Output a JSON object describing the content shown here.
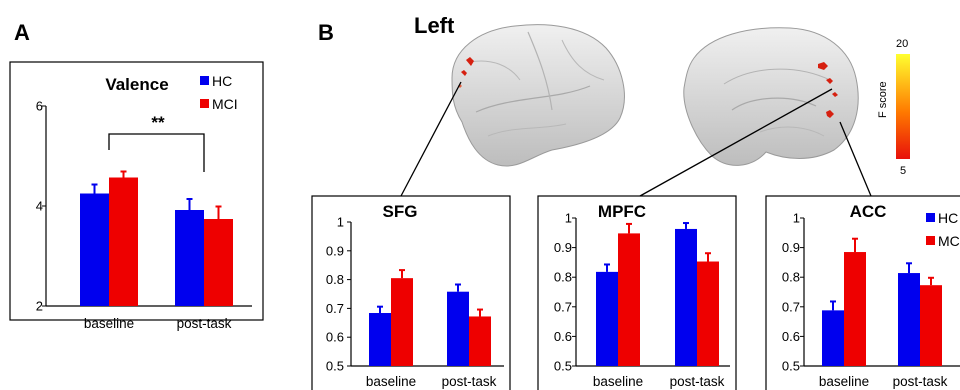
{
  "figure": {
    "panel_a_label": "A",
    "panel_b_label": "B",
    "hemisphere_label": "Left",
    "significance_label": "**",
    "colorbar": {
      "title": "F score",
      "max_label": "20",
      "min_label": "5",
      "min": 5,
      "max": 20
    }
  },
  "colors": {
    "HC": "#0000ee",
    "MCI": "#ee0000",
    "error_bar_HC": "#0000ee",
    "error_bar_MCI": "#ee0000"
  },
  "chart_data": [
    {
      "id": "valence",
      "type": "bar",
      "title": "Valence",
      "categories": [
        "baseline",
        "post-task"
      ],
      "ylim": [
        2,
        6
      ],
      "yticks": [
        "2",
        "4",
        "6"
      ],
      "legend": [
        "HC",
        "MCI"
      ],
      "legend_position": "top-right",
      "series": [
        {
          "name": "HC",
          "values": [
            4.25,
            3.92
          ],
          "errors": [
            0.18,
            0.22
          ]
        },
        {
          "name": "MCI",
          "values": [
            4.57,
            3.74
          ],
          "errors": [
            0.12,
            0.25
          ]
        }
      ]
    },
    {
      "id": "sfg",
      "type": "bar",
      "title": "SFG",
      "categories": [
        "baseline",
        "post-task"
      ],
      "ylim": [
        0.5,
        1.0
      ],
      "yticks": [
        "0.5",
        "0.6",
        "0.7",
        "0.8",
        "0.9",
        "1"
      ],
      "series": [
        {
          "name": "HC",
          "values": [
            0.684,
            0.758
          ],
          "errors": [
            0.022,
            0.025
          ]
        },
        {
          "name": "MCI",
          "values": [
            0.805,
            0.672
          ],
          "errors": [
            0.028,
            0.024
          ]
        }
      ]
    },
    {
      "id": "mpfc",
      "type": "bar",
      "title": "MPFC",
      "categories": [
        "baseline",
        "post-task"
      ],
      "ylim": [
        0.5,
        1.0
      ],
      "yticks": [
        "0.5",
        "0.6",
        "0.7",
        "0.8",
        "0.9",
        "1"
      ],
      "series": [
        {
          "name": "HC",
          "values": [
            0.818,
            0.963
          ],
          "errors": [
            0.025,
            0.02
          ]
        },
        {
          "name": "MCI",
          "values": [
            0.948,
            0.853
          ],
          "errors": [
            0.032,
            0.028
          ]
        }
      ]
    },
    {
      "id": "acc",
      "type": "bar",
      "title": "ACC",
      "categories": [
        "baseline",
        "post-task"
      ],
      "ylim": [
        0.5,
        1.0
      ],
      "yticks": [
        "0.5",
        "0.6",
        "0.7",
        "0.8",
        "0.9",
        "1"
      ],
      "legend": [
        "HC",
        "MCI"
      ],
      "legend_position": "top-right",
      "series": [
        {
          "name": "HC",
          "values": [
            0.688,
            0.814
          ],
          "errors": [
            0.03,
            0.033
          ]
        },
        {
          "name": "MCI",
          "values": [
            0.885,
            0.773
          ],
          "errors": [
            0.045,
            0.025
          ]
        }
      ]
    }
  ]
}
